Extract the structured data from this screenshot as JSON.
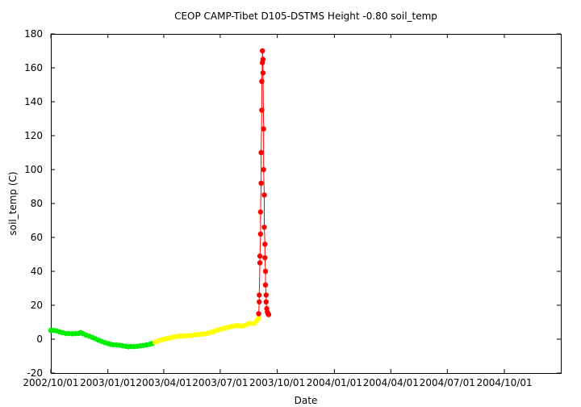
{
  "chart_data": {
    "type": "scatter",
    "title": "CEOP CAMP-Tibet D105-DSTMS Height -0.80 soil_temp",
    "xlabel": "Date",
    "ylabel": "soil_temp (C)",
    "xlim": [
      "2002-10-01",
      "2004-12-31"
    ],
    "ylim": [
      -20,
      180
    ],
    "grid": false,
    "x_tick_labels": [
      "2002/10/01",
      "2003/01/01",
      "2003/04/01",
      "2003/07/01",
      "2003/10/01",
      "2004/01/01",
      "2004/04/01",
      "2004/07/01",
      "2004/10/01"
    ],
    "y_tick_labels": [
      "-20",
      "0",
      "20",
      "40",
      "60",
      "80",
      "100",
      "120",
      "140",
      "160",
      "180"
    ],
    "series": [
      {
        "color": "#00ee00",
        "connected": false,
        "points": [
          [
            "2002-10-01",
            5.2
          ],
          [
            "2002-10-05",
            5.3
          ],
          [
            "2002-10-10",
            4.9
          ],
          [
            "2002-10-15",
            4.3
          ],
          [
            "2002-10-20",
            3.8
          ],
          [
            "2002-10-25",
            3.4
          ],
          [
            "2002-10-30",
            3.3
          ],
          [
            "2002-11-05",
            3.2
          ],
          [
            "2002-11-10",
            3.3
          ],
          [
            "2002-11-15",
            3.4
          ],
          [
            "2002-11-18",
            3.9
          ],
          [
            "2002-11-22",
            3.2
          ],
          [
            "2002-11-27",
            2.4
          ],
          [
            "2002-12-02",
            1.7
          ],
          [
            "2002-12-07",
            1.0
          ],
          [
            "2002-12-12",
            0.2
          ],
          [
            "2002-12-17",
            -0.6
          ],
          [
            "2002-12-22",
            -1.3
          ],
          [
            "2002-12-27",
            -2.0
          ],
          [
            "2003-01-01",
            -2.5
          ],
          [
            "2003-01-05",
            -3.0
          ],
          [
            "2003-01-10",
            -3.3
          ],
          [
            "2003-01-15",
            -3.4
          ],
          [
            "2003-01-20",
            -3.6
          ],
          [
            "2003-01-25",
            -3.9
          ],
          [
            "2003-01-30",
            -4.2
          ],
          [
            "2003-02-03",
            -4.5
          ],
          [
            "2003-02-07",
            -4.3
          ],
          [
            "2003-02-12",
            -4.4
          ],
          [
            "2003-02-17",
            -4.2
          ],
          [
            "2003-02-22",
            -3.9
          ],
          [
            "2003-02-27",
            -3.7
          ],
          [
            "2003-03-04",
            -3.4
          ],
          [
            "2003-03-09",
            -3.0
          ],
          [
            "2003-03-13",
            -2.6
          ]
        ]
      },
      {
        "color": "#ffff00",
        "connected": false,
        "points": [
          [
            "2003-03-18",
            -1.8
          ],
          [
            "2003-03-23",
            -1.0
          ],
          [
            "2003-03-28",
            -0.5
          ],
          [
            "2003-04-02",
            0.0
          ],
          [
            "2003-04-07",
            0.4
          ],
          [
            "2003-04-12",
            0.9
          ],
          [
            "2003-04-17",
            1.3
          ],
          [
            "2003-04-22",
            1.6
          ],
          [
            "2003-04-27",
            1.8
          ],
          [
            "2003-05-02",
            1.9
          ],
          [
            "2003-05-07",
            2.0
          ],
          [
            "2003-05-12",
            2.1
          ],
          [
            "2003-05-17",
            2.3
          ],
          [
            "2003-05-22",
            2.5
          ],
          [
            "2003-05-27",
            2.8
          ],
          [
            "2003-06-01",
            3.0
          ],
          [
            "2003-06-06",
            3.2
          ],
          [
            "2003-06-11",
            3.5
          ],
          [
            "2003-06-16",
            4.0
          ],
          [
            "2003-06-21",
            4.6
          ],
          [
            "2003-06-26",
            5.3
          ],
          [
            "2003-07-01",
            5.8
          ],
          [
            "2003-07-06",
            6.3
          ],
          [
            "2003-07-11",
            6.8
          ],
          [
            "2003-07-16",
            7.2
          ],
          [
            "2003-07-21",
            7.6
          ],
          [
            "2003-07-26",
            7.9
          ],
          [
            "2003-07-31",
            8.0
          ],
          [
            "2003-08-05",
            7.7
          ],
          [
            "2003-08-10",
            8.3
          ],
          [
            "2003-08-15",
            9.0
          ],
          [
            "2003-08-20",
            9.4
          ],
          [
            "2003-08-25",
            9.3
          ],
          [
            "2003-08-29",
            11.0
          ],
          [
            "2003-09-01",
            12.5
          ]
        ]
      },
      {
        "color": "#ff0000",
        "connected": true,
        "points": [
          [
            "2003-09-01",
            15.0
          ],
          [
            "2003-09-02",
            22.0
          ],
          [
            "2003-09-02",
            26.0
          ],
          [
            "2003-09-03",
            45.0
          ],
          [
            "2003-09-03",
            49.0
          ],
          [
            "2003-09-04",
            62.0
          ],
          [
            "2003-09-04",
            75.0
          ],
          [
            "2003-09-05",
            92.0
          ],
          [
            "2003-09-05",
            110.0
          ],
          [
            "2003-09-06",
            135.0
          ],
          [
            "2003-09-06",
            152.0
          ],
          [
            "2003-09-07",
            163.0
          ],
          [
            "2003-09-07",
            170.0
          ],
          [
            "2003-09-08",
            165.0
          ],
          [
            "2003-09-08",
            157.0
          ],
          [
            "2003-09-09",
            124.0
          ],
          [
            "2003-09-09",
            100.0
          ],
          [
            "2003-09-10",
            85.0
          ],
          [
            "2003-09-10",
            66.0
          ],
          [
            "2003-09-11",
            56.0
          ],
          [
            "2003-09-11",
            48.0
          ],
          [
            "2003-09-12",
            40.0
          ],
          [
            "2003-09-12",
            32.0
          ],
          [
            "2003-09-13",
            26.0
          ],
          [
            "2003-09-13",
            22.0
          ],
          [
            "2003-09-14",
            18.0
          ],
          [
            "2003-09-15",
            16.0
          ],
          [
            "2003-09-16",
            15.0
          ],
          [
            "2003-09-17",
            14.5
          ]
        ]
      }
    ]
  }
}
